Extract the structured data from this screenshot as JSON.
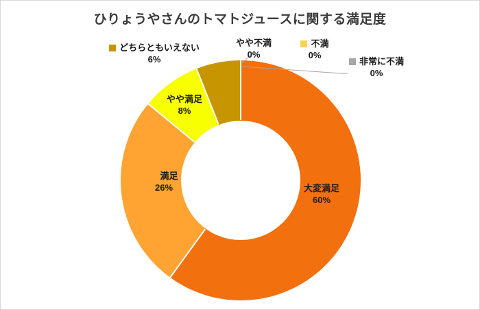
{
  "chart_data": {
    "type": "pie",
    "subtype": "donut",
    "title": "ひりょうやさんのトマトジュースに関する満足度",
    "hole_ratio": 0.5,
    "start_angle_deg": 0,
    "direction": "clockwise",
    "legend_position": "none",
    "segments": [
      {
        "label": "大変満足",
        "value": 60,
        "pct_label": "60%",
        "color": "#F2700D"
      },
      {
        "label": "満足",
        "value": 26,
        "pct_label": "26%",
        "color": "#FFA333"
      },
      {
        "label": "やや満足",
        "value": 8,
        "pct_label": "8%",
        "color": "#F7FF00"
      },
      {
        "label": "どちらともいえない",
        "value": 6,
        "pct_label": "6%",
        "color": "#C79500"
      },
      {
        "label": "やや不満",
        "value": 0,
        "pct_label": "0%",
        "color": null
      },
      {
        "label": "不満",
        "value": 0,
        "pct_label": "0%",
        "color": "#FFD34D"
      },
      {
        "label": "非常に不満",
        "value": 0,
        "pct_label": "0%",
        "color": "#A6A6A6"
      }
    ]
  }
}
